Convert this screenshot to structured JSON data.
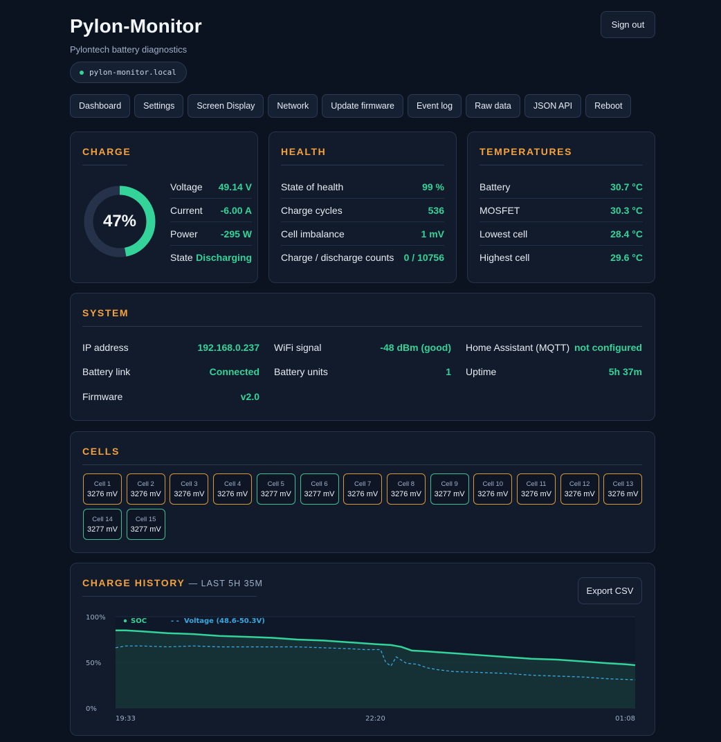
{
  "header": {
    "title": "Pylon-Monitor",
    "subtitle": "Pylontech battery diagnostics",
    "host": "pylon-monitor.local",
    "sign_out": "Sign out"
  },
  "nav": [
    "Dashboard",
    "Settings",
    "Screen Display",
    "Network",
    "Update firmware",
    "Event log",
    "Raw data",
    "JSON API",
    "Reboot"
  ],
  "charge": {
    "title": "CHARGE",
    "soc_percent": 47,
    "soc_label": "47%",
    "rows": [
      {
        "label": "Voltage",
        "value": "49.14 V"
      },
      {
        "label": "Current",
        "value": "-6.00 A"
      },
      {
        "label": "Power",
        "value": "-295 W"
      },
      {
        "label": "State",
        "value": "Discharging"
      }
    ]
  },
  "health": {
    "title": "HEALTH",
    "rows": [
      {
        "label": "State of health",
        "value": "99 %"
      },
      {
        "label": "Charge cycles",
        "value": "536"
      },
      {
        "label": "Cell imbalance",
        "value": "1 mV"
      },
      {
        "label": "Charge / discharge counts",
        "value": "0 / 10756"
      }
    ]
  },
  "temperatures": {
    "title": "TEMPERATURES",
    "rows": [
      {
        "label": "Battery",
        "value": "30.7 °C"
      },
      {
        "label": "MOSFET",
        "value": "30.3 °C"
      },
      {
        "label": "Lowest cell",
        "value": "28.4 °C"
      },
      {
        "label": "Highest cell",
        "value": "29.6 °C"
      }
    ]
  },
  "system": {
    "title": "SYSTEM",
    "items": [
      {
        "label": "IP address",
        "value": "192.168.0.237"
      },
      {
        "label": "WiFi signal",
        "value": "-48 dBm (good)"
      },
      {
        "label": "Home Assistant (MQTT)",
        "value": "not configured"
      },
      {
        "label": "Battery link",
        "value": "Connected"
      },
      {
        "label": "Battery units",
        "value": "1"
      },
      {
        "label": "Uptime",
        "value": "5h 37m"
      },
      {
        "label": "Firmware",
        "value": "v2.0"
      }
    ]
  },
  "cells": {
    "title": "CELLS",
    "items": [
      {
        "name": "Cell 1",
        "mv": "3276 mV",
        "status": "low"
      },
      {
        "name": "Cell 2",
        "mv": "3276 mV",
        "status": "low"
      },
      {
        "name": "Cell 3",
        "mv": "3276 mV",
        "status": "low"
      },
      {
        "name": "Cell 4",
        "mv": "3276 mV",
        "status": "low"
      },
      {
        "name": "Cell 5",
        "mv": "3277 mV",
        "status": "high"
      },
      {
        "name": "Cell 6",
        "mv": "3277 mV",
        "status": "high"
      },
      {
        "name": "Cell 7",
        "mv": "3276 mV",
        "status": "low"
      },
      {
        "name": "Cell 8",
        "mv": "3276 mV",
        "status": "low"
      },
      {
        "name": "Cell 9",
        "mv": "3277 mV",
        "status": "high"
      },
      {
        "name": "Cell 10",
        "mv": "3276 mV",
        "status": "low"
      },
      {
        "name": "Cell 11",
        "mv": "3276 mV",
        "status": "low"
      },
      {
        "name": "Cell 12",
        "mv": "3276 mV",
        "status": "low"
      },
      {
        "name": "Cell 13",
        "mv": "3276 mV",
        "status": "low"
      },
      {
        "name": "Cell 14",
        "mv": "3277 mV",
        "status": "high"
      },
      {
        "name": "Cell 15",
        "mv": "3277 mV",
        "status": "high"
      }
    ]
  },
  "history": {
    "title": "CHARGE HISTORY",
    "subtitle": "— LAST 5H 35M",
    "export": "Export CSV"
  },
  "colors": {
    "accent": "#f5a23b",
    "good": "#34d399",
    "voltage": "#3aa7e0",
    "cell_low_border": "#d89a36",
    "cell_high_border": "#3fbf93"
  },
  "chart_data": {
    "type": "line",
    "title": "",
    "y_ticks": [
      "100%",
      "50%",
      "0%"
    ],
    "ylim": [
      0,
      100
    ],
    "x_tick_labels": [
      "19:33",
      "22:20",
      "01:08"
    ],
    "legend": [
      "SOC",
      "Voltage (48.6-50.3V)"
    ],
    "voltage_range": [
      48.6,
      50.3
    ],
    "grid": true,
    "series": [
      {
        "name": "SOC",
        "style": "solid-area",
        "x_frac": [
          0,
          0.02,
          0.05,
          0.1,
          0.15,
          0.2,
          0.25,
          0.3,
          0.35,
          0.4,
          0.45,
          0.5,
          0.53,
          0.55,
          0.57,
          0.6,
          0.65,
          0.7,
          0.75,
          0.8,
          0.85,
          0.9,
          0.95,
          0.98,
          1.0
        ],
        "values": [
          85,
          85,
          84,
          82,
          81,
          79,
          78,
          77,
          75,
          74,
          72,
          70,
          69,
          67,
          63,
          62,
          60,
          58,
          56,
          54,
          53,
          51,
          49,
          48,
          47
        ]
      },
      {
        "name": "Voltage (48.6-50.3V)",
        "style": "dashed",
        "x_frac": [
          0,
          0.02,
          0.05,
          0.1,
          0.15,
          0.2,
          0.25,
          0.3,
          0.35,
          0.4,
          0.45,
          0.48,
          0.51,
          0.52,
          0.53,
          0.54,
          0.56,
          0.58,
          0.6,
          0.62,
          0.65,
          0.7,
          0.75,
          0.8,
          0.85,
          0.9,
          0.95,
          1.0
        ],
        "values": [
          66,
          68,
          68,
          67,
          68,
          67,
          67,
          67,
          67,
          66,
          65,
          64,
          64,
          50,
          46,
          56,
          49,
          48,
          44,
          42,
          40,
          39,
          38,
          36,
          35,
          34,
          32,
          31
        ]
      }
    ]
  }
}
